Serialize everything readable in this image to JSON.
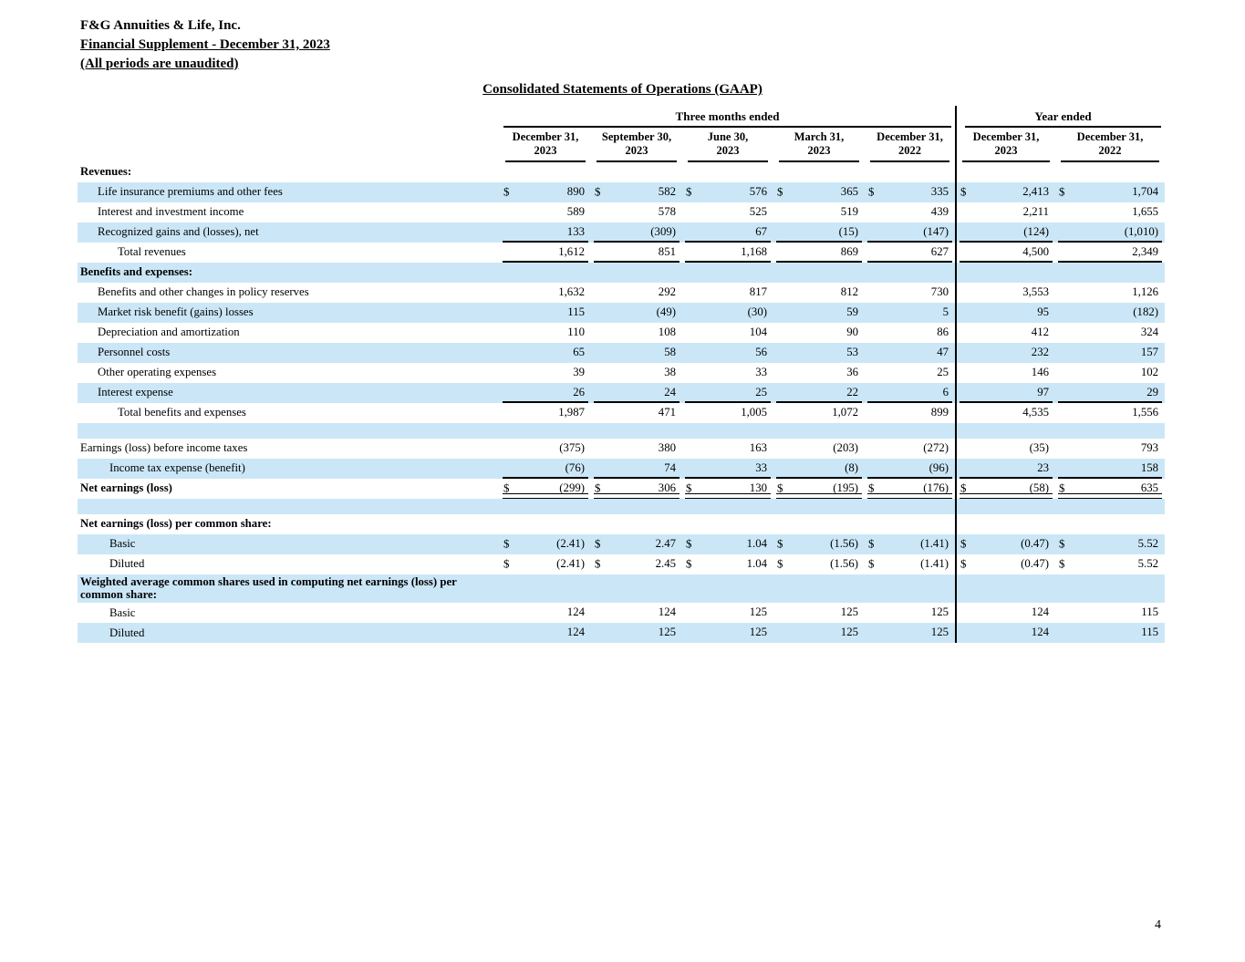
{
  "page": {
    "company_name": "F&G Annuities & Life, Inc.",
    "supplement_line": "Financial Supplement - December 31, 2023",
    "unaudited_line": "(All periods are unaudited)",
    "statement_title": "Consolidated Statements of Operations (GAAP)",
    "page_number": "4"
  },
  "colors": {
    "row_highlight": "#cbe7f7",
    "text": "#000000",
    "rule": "#000000"
  },
  "table": {
    "group_headers": [
      {
        "label": "Three months ended",
        "span": 5
      },
      {
        "label": "Year ended",
        "span": 2
      }
    ],
    "columns": [
      {
        "line1": "December 31,",
        "line2": "2023"
      },
      {
        "line1": "September 30,",
        "line2": "2023"
      },
      {
        "line1": "June 30,",
        "line2": "2023"
      },
      {
        "line1": "March 31,",
        "line2": "2023"
      },
      {
        "line1": "December 31,",
        "line2": "2022"
      },
      {
        "line1": "December 31,",
        "line2": "2023"
      },
      {
        "line1": "December 31,",
        "line2": "2022"
      }
    ],
    "rows": [
      {
        "type": "section",
        "label": "Revenues:",
        "indent": 0,
        "bold": true,
        "shaded": false,
        "values": []
      },
      {
        "type": "data",
        "label": "Life insurance premiums and other fees",
        "indent": 1,
        "shaded": true,
        "dollar": true,
        "values": [
          "890",
          "582",
          "576",
          "365",
          "335",
          "2,413",
          "1,704"
        ]
      },
      {
        "type": "data",
        "label": "Interest and investment income",
        "indent": 1,
        "shaded": false,
        "values": [
          "589",
          "578",
          "525",
          "519",
          "439",
          "2,211",
          "1,655"
        ]
      },
      {
        "type": "data",
        "label": "Recognized gains and (losses), net",
        "indent": 1,
        "shaded": true,
        "underline": "single",
        "values": [
          "133",
          "(309)",
          "67",
          "(15)",
          "(147)",
          "(124)",
          "(1,010)"
        ]
      },
      {
        "type": "data",
        "label": "Total revenues",
        "indent": 3,
        "shaded": false,
        "underline": "single",
        "values": [
          "1,612",
          "851",
          "1,168",
          "869",
          "627",
          "4,500",
          "2,349"
        ]
      },
      {
        "type": "section",
        "label": "Benefits and expenses:",
        "indent": 0,
        "bold": true,
        "shaded": true,
        "values": []
      },
      {
        "type": "data",
        "label": "Benefits and other changes in policy reserves",
        "indent": 1,
        "shaded": false,
        "values": [
          "1,632",
          "292",
          "817",
          "812",
          "730",
          "3,553",
          "1,126"
        ]
      },
      {
        "type": "data",
        "label": "Market risk benefit (gains) losses",
        "indent": 1,
        "shaded": true,
        "values": [
          "115",
          "(49)",
          "(30)",
          "59",
          "5",
          "95",
          "(182)"
        ]
      },
      {
        "type": "data",
        "label": "Depreciation and amortization",
        "indent": 1,
        "shaded": false,
        "values": [
          "110",
          "108",
          "104",
          "90",
          "86",
          "412",
          "324"
        ]
      },
      {
        "type": "data",
        "label": "Personnel costs",
        "indent": 1,
        "shaded": true,
        "values": [
          "65",
          "58",
          "56",
          "53",
          "47",
          "232",
          "157"
        ]
      },
      {
        "type": "data",
        "label": "Other operating expenses",
        "indent": 1,
        "shaded": false,
        "values": [
          "39",
          "38",
          "33",
          "36",
          "25",
          "146",
          "102"
        ]
      },
      {
        "type": "data",
        "label": "Interest expense",
        "indent": 1,
        "shaded": true,
        "underline": "single",
        "values": [
          "26",
          "24",
          "25",
          "22",
          "6",
          "97",
          "29"
        ]
      },
      {
        "type": "data",
        "label": "Total benefits and expenses",
        "indent": 3,
        "shaded": false,
        "values": [
          "1,987",
          "471",
          "1,005",
          "1,072",
          "899",
          "4,535",
          "1,556"
        ]
      },
      {
        "type": "blank",
        "label": "",
        "shaded": true,
        "values": []
      },
      {
        "type": "data",
        "label": "Earnings (loss) before income taxes",
        "indent": 0,
        "shaded": false,
        "values": [
          "(375)",
          "380",
          "163",
          "(203)",
          "(272)",
          "(35)",
          "793"
        ]
      },
      {
        "type": "data",
        "label": "Income tax expense (benefit)",
        "indent": 2,
        "shaded": true,
        "underline": "single",
        "values": [
          "(76)",
          "74",
          "33",
          "(8)",
          "(96)",
          "23",
          "158"
        ]
      },
      {
        "type": "data",
        "label": "Net earnings (loss)",
        "indent": 0,
        "bold": true,
        "dollar": true,
        "underline": "double",
        "values": [
          "(299)",
          "306",
          "130",
          "(195)",
          "(176)",
          "(58)",
          "635"
        ]
      },
      {
        "type": "blank",
        "label": "",
        "shaded": true,
        "values": []
      },
      {
        "type": "section",
        "label": "Net earnings (loss) per common share:",
        "indent": 0,
        "bold": true,
        "shaded": false,
        "values": []
      },
      {
        "type": "data",
        "label": "Basic",
        "indent": 2,
        "shaded": true,
        "dollar": true,
        "values": [
          "(2.41)",
          "2.47",
          "1.04",
          "(1.56)",
          "(1.41)",
          "(0.47)",
          "5.52"
        ]
      },
      {
        "type": "data",
        "label": "Diluted",
        "indent": 2,
        "shaded": false,
        "dollar": true,
        "values": [
          "(2.41)",
          "2.45",
          "1.04",
          "(1.56)",
          "(1.41)",
          "(0.47)",
          "5.52"
        ]
      },
      {
        "type": "section",
        "label": "Weighted average common shares used in computing net earnings (loss) per common share:",
        "indent": 0,
        "bold": true,
        "shaded": true,
        "values": []
      },
      {
        "type": "data",
        "label": "Basic",
        "indent": 2,
        "shaded": false,
        "values": [
          "124",
          "124",
          "125",
          "125",
          "125",
          "124",
          "115"
        ]
      },
      {
        "type": "data",
        "label": "Diluted",
        "indent": 2,
        "shaded": true,
        "values": [
          "124",
          "125",
          "125",
          "125",
          "125",
          "124",
          "115"
        ]
      }
    ]
  }
}
